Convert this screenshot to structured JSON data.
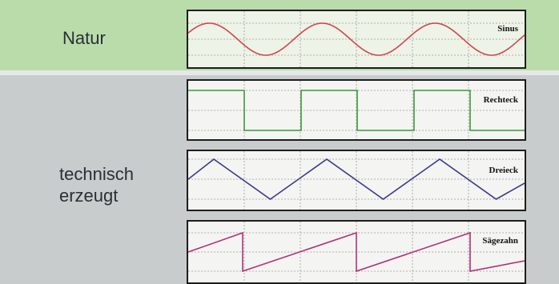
{
  "labels": {
    "nature": "Natur",
    "technical_line1": "technisch",
    "technical_line2": "erzeugt"
  },
  "waves": [
    {
      "name": "Sinus",
      "shape": "sine",
      "color": "#d0454f"
    },
    {
      "name": "Rechteck",
      "shape": "square",
      "color": "#3a9a3a"
    },
    {
      "name": "Dreieck",
      "shape": "triangle",
      "color": "#3c3a8a"
    },
    {
      "name": "Sägezahn",
      "shape": "sawtooth",
      "color": "#b0307a"
    }
  ],
  "colors": {
    "nature_band": "#b9dcaa",
    "technical_band": "#c9cccd",
    "grid": "#9a9a9a"
  }
}
